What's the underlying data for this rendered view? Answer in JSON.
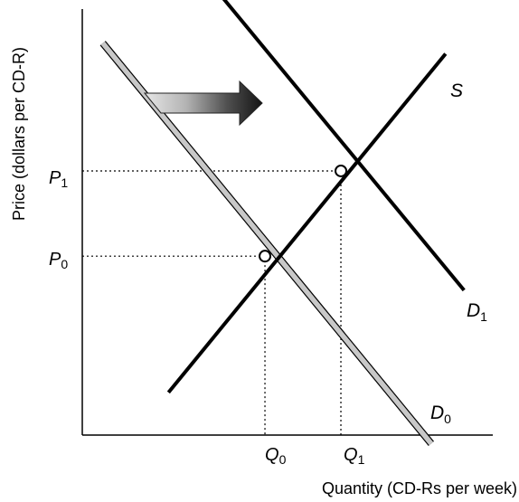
{
  "chart_data": {
    "type": "line",
    "title": "",
    "xlabel": "Quantity (CD-Rs per week)",
    "ylabel": "Price (dollars per CD-R)",
    "xlim": [
      0,
      10
    ],
    "ylim": [
      0,
      10
    ],
    "x_ticks": [
      {
        "label": "Q",
        "sub": "0",
        "value": 4.45
      },
      {
        "label": "Q",
        "sub": "1",
        "value": 6.3
      }
    ],
    "y_ticks": [
      {
        "label": "P",
        "sub": "0",
        "value": 4.2
      },
      {
        "label": "P",
        "sub": "1",
        "value": 6.2
      }
    ],
    "series": [
      {
        "name": "S",
        "label_main": "S",
        "label_sub": "",
        "color": "#000000",
        "points": [
          [
            2.1,
            1.0
          ],
          [
            8.85,
            8.95
          ]
        ]
      },
      {
        "name": "D1",
        "label_main": "D",
        "label_sub": "1",
        "color": "#000000",
        "points": [
          [
            3.05,
            10.7
          ],
          [
            9.3,
            3.4
          ]
        ]
      },
      {
        "name": "D0",
        "label_main": "D",
        "label_sub": "0",
        "color": "#c8c8c8",
        "points": [
          [
            0.5,
            9.2
          ],
          [
            8.5,
            -0.2
          ]
        ]
      }
    ],
    "equilibria": [
      {
        "x": 4.45,
        "y": 4.2
      },
      {
        "x": 6.3,
        "y": 6.2
      }
    ],
    "annotations": [
      {
        "type": "shift-arrow",
        "direction": "right"
      }
    ],
    "grid": false,
    "legend": "none"
  }
}
